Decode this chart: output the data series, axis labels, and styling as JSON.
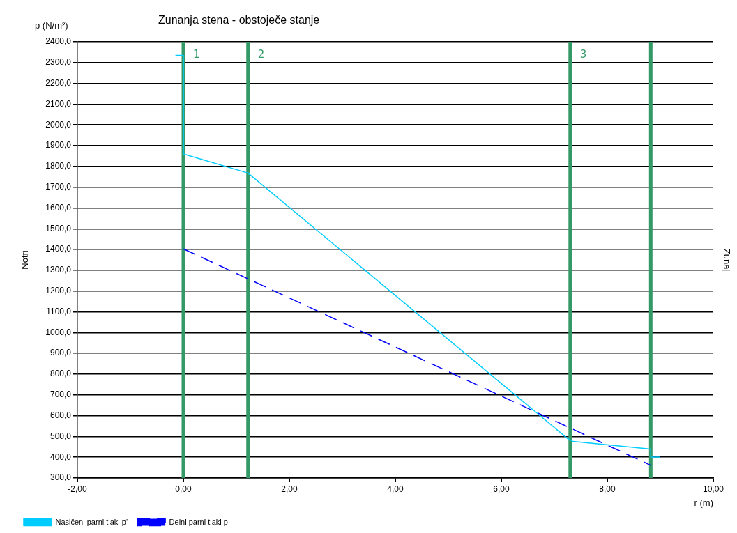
{
  "chart_data": {
    "type": "line",
    "title": "Zunanja stena - obstoječe stanje",
    "xlabel": "r (m)",
    "ylabel": "p (N/m²)",
    "annotations": [
      "Notri",
      "Zunaj",
      {
        "text": "1",
        "x": 0,
        "y": 2335
      },
      {
        "text": "2",
        "x": 1.22,
        "y": 2335
      },
      {
        "text": "3",
        "x": 7.3,
        "y": 2335
      }
    ],
    "series": [
      {
        "name": "Nasičeni parni tlaki p'",
        "color": "#00ccff",
        "line_style": "solid",
        "x": [
          -0.15,
          0,
          0,
          1.22,
          7.25,
          7.35,
          8.82,
          8.82,
          9.0
        ],
        "values": [
          2335,
          2335,
          1860,
          1768,
          490,
          476,
          439,
          401,
          401
        ]
      },
      {
        "name": "Delni parni tlaki p",
        "color": "#0000ff",
        "line_style": "dashed",
        "x": [
          0,
          8.82
        ],
        "values": [
          1403,
          361
        ]
      }
    ],
    "ref_lines": [
      {
        "axis": "x",
        "value": 0,
        "color": "#339966"
      },
      {
        "axis": "x",
        "value": 1.22,
        "color": "#339966"
      },
      {
        "axis": "x",
        "value": 7.3,
        "color": "#339966"
      },
      {
        "axis": "x",
        "value": 8.82,
        "color": "#339966"
      }
    ],
    "xlim": [
      -2,
      10
    ],
    "xticks": [
      {
        "value": -2,
        "label": "-2,00"
      },
      {
        "value": 0,
        "label": "0,00"
      },
      {
        "value": 2,
        "label": "2,00"
      },
      {
        "value": 4,
        "label": "4,00"
      },
      {
        "value": 6,
        "label": "6,00"
      },
      {
        "value": 8,
        "label": "8,00"
      },
      {
        "value": 10,
        "label": "10,00"
      }
    ],
    "ylim": [
      300,
      2400
    ],
    "yticks": [
      {
        "value": 300,
        "label": "300,0"
      },
      {
        "value": 400,
        "label": "400,0"
      },
      {
        "value": 500,
        "label": "500,0"
      },
      {
        "value": 600,
        "label": "600,0"
      },
      {
        "value": 700,
        "label": "700,0"
      },
      {
        "value": 800,
        "label": "800,0"
      },
      {
        "value": 900,
        "label": "900,0"
      },
      {
        "value": 1000,
        "label": "1000,0"
      },
      {
        "value": 1100,
        "label": "1100,0"
      },
      {
        "value": 1200,
        "label": "1200,0"
      },
      {
        "value": 1300,
        "label": "1300,0"
      },
      {
        "value": 1400,
        "label": "1400,0"
      },
      {
        "value": 1500,
        "label": "1500,0"
      },
      {
        "value": 1600,
        "label": "1600,0"
      },
      {
        "value": 1700,
        "label": "1700,0"
      },
      {
        "value": 1800,
        "label": "1800,0"
      },
      {
        "value": 1900,
        "label": "1900,0"
      },
      {
        "value": 2000,
        "label": "2000,0"
      },
      {
        "value": 2100,
        "label": "2100,0"
      },
      {
        "value": 2200,
        "label": "2200,0"
      },
      {
        "value": 2300,
        "label": "2300,0"
      },
      {
        "value": 2400,
        "label": "2400,0"
      }
    ],
    "grid": "y",
    "legend": "bottom",
    "marker": "none"
  }
}
